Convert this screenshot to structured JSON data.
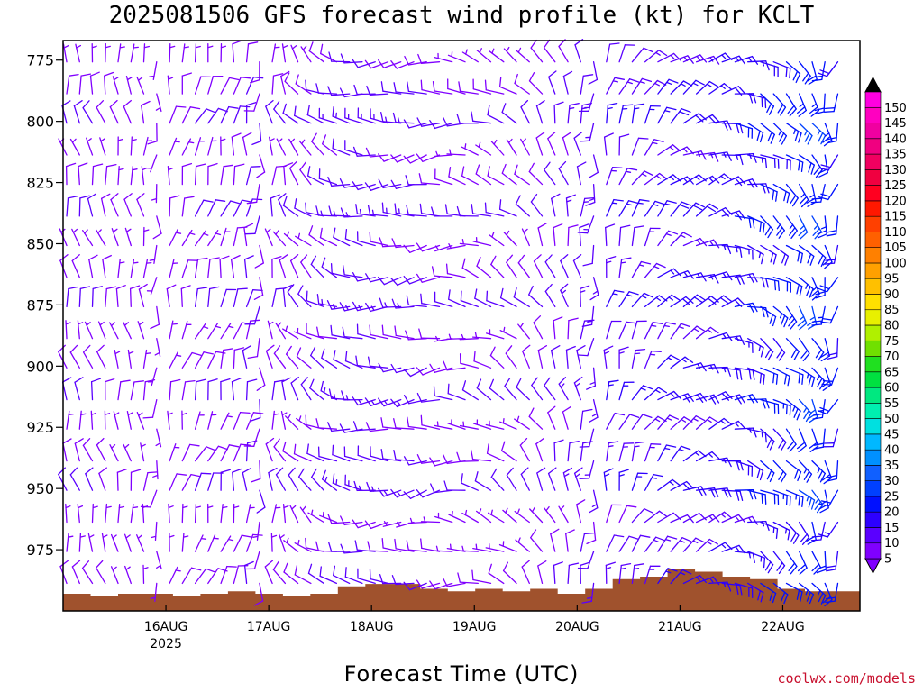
{
  "chart_data": {
    "type": "wind-barb-profile",
    "title": "2025081506 GFS forecast wind profile (kt) for KCLT",
    "xlabel": "Forecast Time (UTC)",
    "ylabel": "",
    "y_ticks": [
      "775",
      "800",
      "825",
      "850",
      "875",
      "900",
      "925",
      "950",
      "975"
    ],
    "y_tick_values": [
      775,
      800,
      825,
      850,
      875,
      900,
      925,
      950,
      975
    ],
    "ylim": [
      767,
      1000
    ],
    "x_ticks": [
      {
        "label": "16AUG",
        "sublabel": "2025",
        "day": 16
      },
      {
        "label": "17AUG",
        "sublabel": "",
        "day": 17
      },
      {
        "label": "18AUG",
        "sublabel": "",
        "day": 18
      },
      {
        "label": "19AUG",
        "sublabel": "",
        "day": 19
      },
      {
        "label": "20AUG",
        "sublabel": "",
        "day": 20
      },
      {
        "label": "21AUG",
        "sublabel": "",
        "day": 21
      },
      {
        "label": "22AUG",
        "sublabel": "",
        "day": 22
      }
    ],
    "xlim_hours": [
      -6,
      180
    ],
    "colorbar": {
      "levels": [
        5,
        10,
        15,
        20,
        25,
        30,
        35,
        40,
        45,
        50,
        55,
        60,
        65,
        70,
        75,
        80,
        85,
        90,
        95,
        100,
        105,
        110,
        115,
        120,
        125,
        130,
        135,
        140,
        145,
        150
      ],
      "colors": [
        "#8000ff",
        "#5a00ff",
        "#2d00ff",
        "#0010ff",
        "#0040ff",
        "#1060ff",
        "#0090ff",
        "#00b8ff",
        "#00e0e0",
        "#00f0b0",
        "#00e880",
        "#00e040",
        "#20e020",
        "#70e000",
        "#b0f000",
        "#e8f000",
        "#ffe000",
        "#ffc000",
        "#ffa000",
        "#ff8000",
        "#ff6000",
        "#ff4000",
        "#ff1800",
        "#ff0020",
        "#f00040",
        "#f00060",
        "#f00080",
        "#f000a0",
        "#ff00c0",
        "#ff00e0"
      ],
      "over_color": "#000000",
      "under_color": "#8000ff"
    },
    "terrain_color": "#a0522d",
    "terrain_pressure_hpa": [
      993,
      994,
      993,
      993,
      994,
      993,
      992,
      993,
      994,
      993,
      990,
      989,
      989,
      991,
      992,
      991,
      992,
      991,
      993,
      991,
      987,
      986,
      983,
      984,
      986,
      987,
      991,
      992,
      992
    ],
    "wind": {
      "times_hours": [
        -6,
        0,
        6,
        12,
        18,
        24,
        30,
        36,
        42,
        48,
        54,
        60,
        66,
        72,
        78,
        84,
        90,
        96,
        102,
        108,
        114,
        120,
        126,
        132,
        138,
        144,
        150,
        156,
        162,
        168,
        174
      ],
      "levels_hpa": [
        775,
        788,
        800,
        813,
        825,
        838,
        850,
        863,
        875,
        888,
        900,
        913,
        925,
        938,
        950,
        963,
        975,
        988
      ],
      "direction_deg_by_time": [
        350,
        345,
        350,
        355,
        10,
        20,
        15,
        5,
        355,
        320,
        300,
        280,
        270,
        265,
        260,
        270,
        285,
        300,
        320,
        340,
        355,
        10,
        25,
        45,
        60,
        70,
        90,
        120,
        130,
        150,
        200
      ],
      "speed_kt_by_time": [
        9,
        8,
        7,
        6,
        7,
        8,
        9,
        10,
        9,
        8,
        10,
        12,
        12,
        11,
        10,
        9,
        8,
        8,
        9,
        10,
        12,
        13,
        14,
        15,
        16,
        17,
        18,
        20,
        22,
        24,
        20
      ]
    }
  },
  "credit": "coolwx.com/models"
}
